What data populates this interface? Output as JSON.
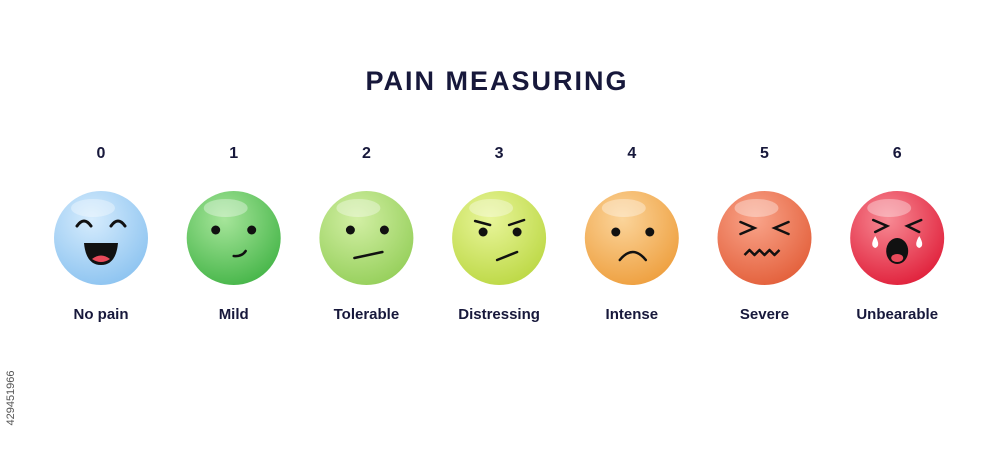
{
  "title": "PAIN MEASURING",
  "levels": [
    {
      "number": 0,
      "label": "No pain"
    },
    {
      "number": 1,
      "label": "Mild"
    },
    {
      "number": 2,
      "label": "Tolerable"
    },
    {
      "number": 3,
      "label": "Distressing"
    },
    {
      "number": 4,
      "label": "Intense"
    },
    {
      "number": 5,
      "label": "Severe"
    },
    {
      "number": 6,
      "label": "Unbearable"
    }
  ],
  "watermark_id": "429451966"
}
